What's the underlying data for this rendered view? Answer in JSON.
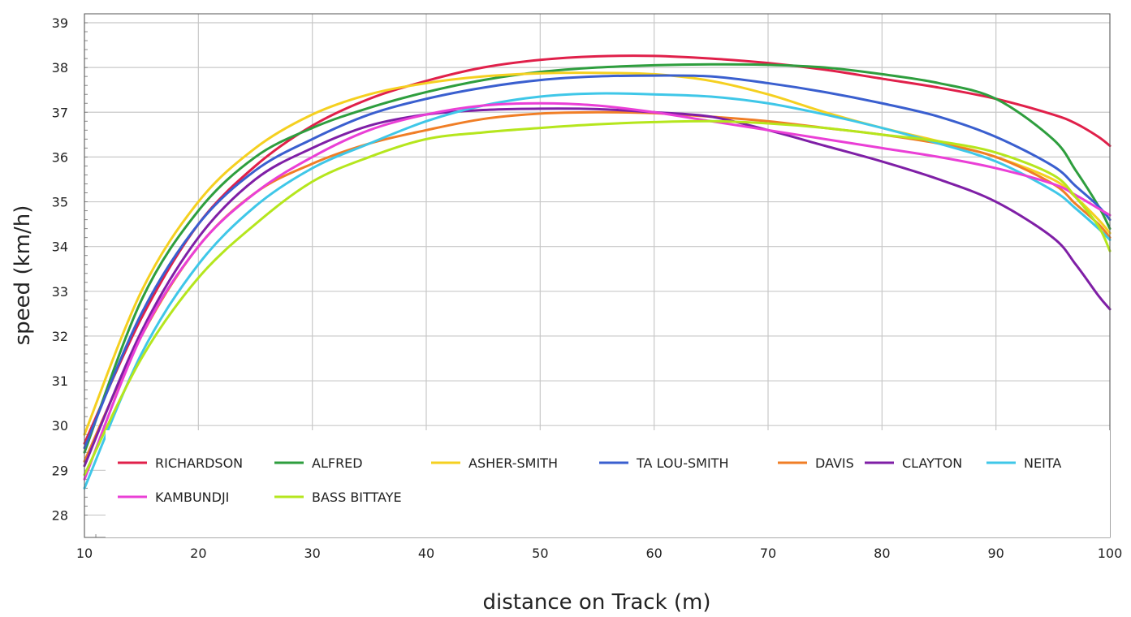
{
  "chart_data": {
    "type": "line",
    "title": "",
    "xlabel": "distance on Track (m)",
    "ylabel": "speed (km/h)",
    "xlim": [
      10,
      100
    ],
    "ylim": [
      27.5,
      39.2
    ],
    "x_ticks": [
      10,
      20,
      30,
      40,
      50,
      60,
      70,
      80,
      90,
      100
    ],
    "y_ticks": [
      28,
      29,
      30,
      31,
      32,
      33,
      34,
      35,
      36,
      37,
      38,
      39
    ],
    "grid": true,
    "legend_position": "bottom-inside",
    "x": [
      10,
      15,
      20,
      25,
      30,
      35,
      40,
      45,
      50,
      55,
      60,
      65,
      70,
      75,
      80,
      85,
      90,
      95,
      97,
      99,
      100
    ],
    "series": [
      {
        "name": "RICHARDSON",
        "color": "#e0204a",
        "values": [
          29.6,
          32.4,
          34.5,
          35.8,
          36.7,
          37.3,
          37.7,
          38.0,
          38.17,
          38.25,
          38.26,
          38.2,
          38.1,
          37.95,
          37.75,
          37.55,
          37.3,
          36.95,
          36.75,
          36.45,
          36.25
        ]
      },
      {
        "name": "ALFRED",
        "color": "#2e9e3e",
        "values": [
          29.4,
          32.8,
          34.8,
          36.0,
          36.65,
          37.1,
          37.45,
          37.72,
          37.9,
          38.0,
          38.05,
          38.07,
          38.06,
          38.0,
          37.85,
          37.65,
          37.3,
          36.4,
          35.7,
          34.9,
          34.4
        ]
      },
      {
        "name": "ASHER-SMITH",
        "color": "#f5d020",
        "values": [
          29.8,
          33.0,
          35.0,
          36.2,
          36.95,
          37.4,
          37.65,
          37.8,
          37.87,
          37.88,
          37.85,
          37.7,
          37.4,
          37.0,
          36.65,
          36.35,
          36.0,
          35.5,
          35.1,
          34.6,
          34.3
        ]
      },
      {
        "name": "TA LOU-SMITH",
        "color": "#3a5fcf",
        "values": [
          29.5,
          32.5,
          34.5,
          35.7,
          36.4,
          36.95,
          37.3,
          37.55,
          37.72,
          37.8,
          37.82,
          37.8,
          37.65,
          37.45,
          37.2,
          36.9,
          36.45,
          35.8,
          35.35,
          34.9,
          34.6
        ]
      },
      {
        "name": "DAVIS",
        "color": "#f07e26",
        "values": [
          29.2,
          32.0,
          34.0,
          35.2,
          35.85,
          36.3,
          36.6,
          36.85,
          36.97,
          37.0,
          36.98,
          36.9,
          36.8,
          36.65,
          36.5,
          36.3,
          36.0,
          35.4,
          34.95,
          34.5,
          34.2
        ]
      },
      {
        "name": "CLAYTON",
        "color": "#7f1fa6",
        "values": [
          29.1,
          32.1,
          34.2,
          35.5,
          36.2,
          36.7,
          36.95,
          37.05,
          37.08,
          37.07,
          37.0,
          36.9,
          36.6,
          36.25,
          35.9,
          35.5,
          35.0,
          34.2,
          33.6,
          32.9,
          32.6
        ]
      },
      {
        "name": "NEITA",
        "color": "#3fc7e8",
        "values": [
          28.6,
          31.6,
          33.6,
          34.9,
          35.75,
          36.3,
          36.8,
          37.15,
          37.35,
          37.42,
          37.4,
          37.35,
          37.2,
          36.95,
          36.65,
          36.3,
          35.9,
          35.25,
          34.85,
          34.4,
          34.15
        ]
      },
      {
        "name": "KAMBUNDJI",
        "color": "#ea3fd6",
        "values": [
          28.8,
          32.0,
          34.0,
          35.2,
          36.0,
          36.6,
          36.95,
          37.15,
          37.2,
          37.15,
          37.0,
          36.8,
          36.6,
          36.4,
          36.2,
          36.0,
          35.75,
          35.4,
          35.15,
          34.85,
          34.7
        ]
      },
      {
        "name": "BASS BITTAYE",
        "color": "#b5e61d",
        "values": [
          28.9,
          31.5,
          33.3,
          34.5,
          35.45,
          36.0,
          36.4,
          36.55,
          36.65,
          36.73,
          36.78,
          36.8,
          36.75,
          36.65,
          36.5,
          36.35,
          36.1,
          35.6,
          35.1,
          34.45,
          33.9
        ]
      }
    ]
  }
}
